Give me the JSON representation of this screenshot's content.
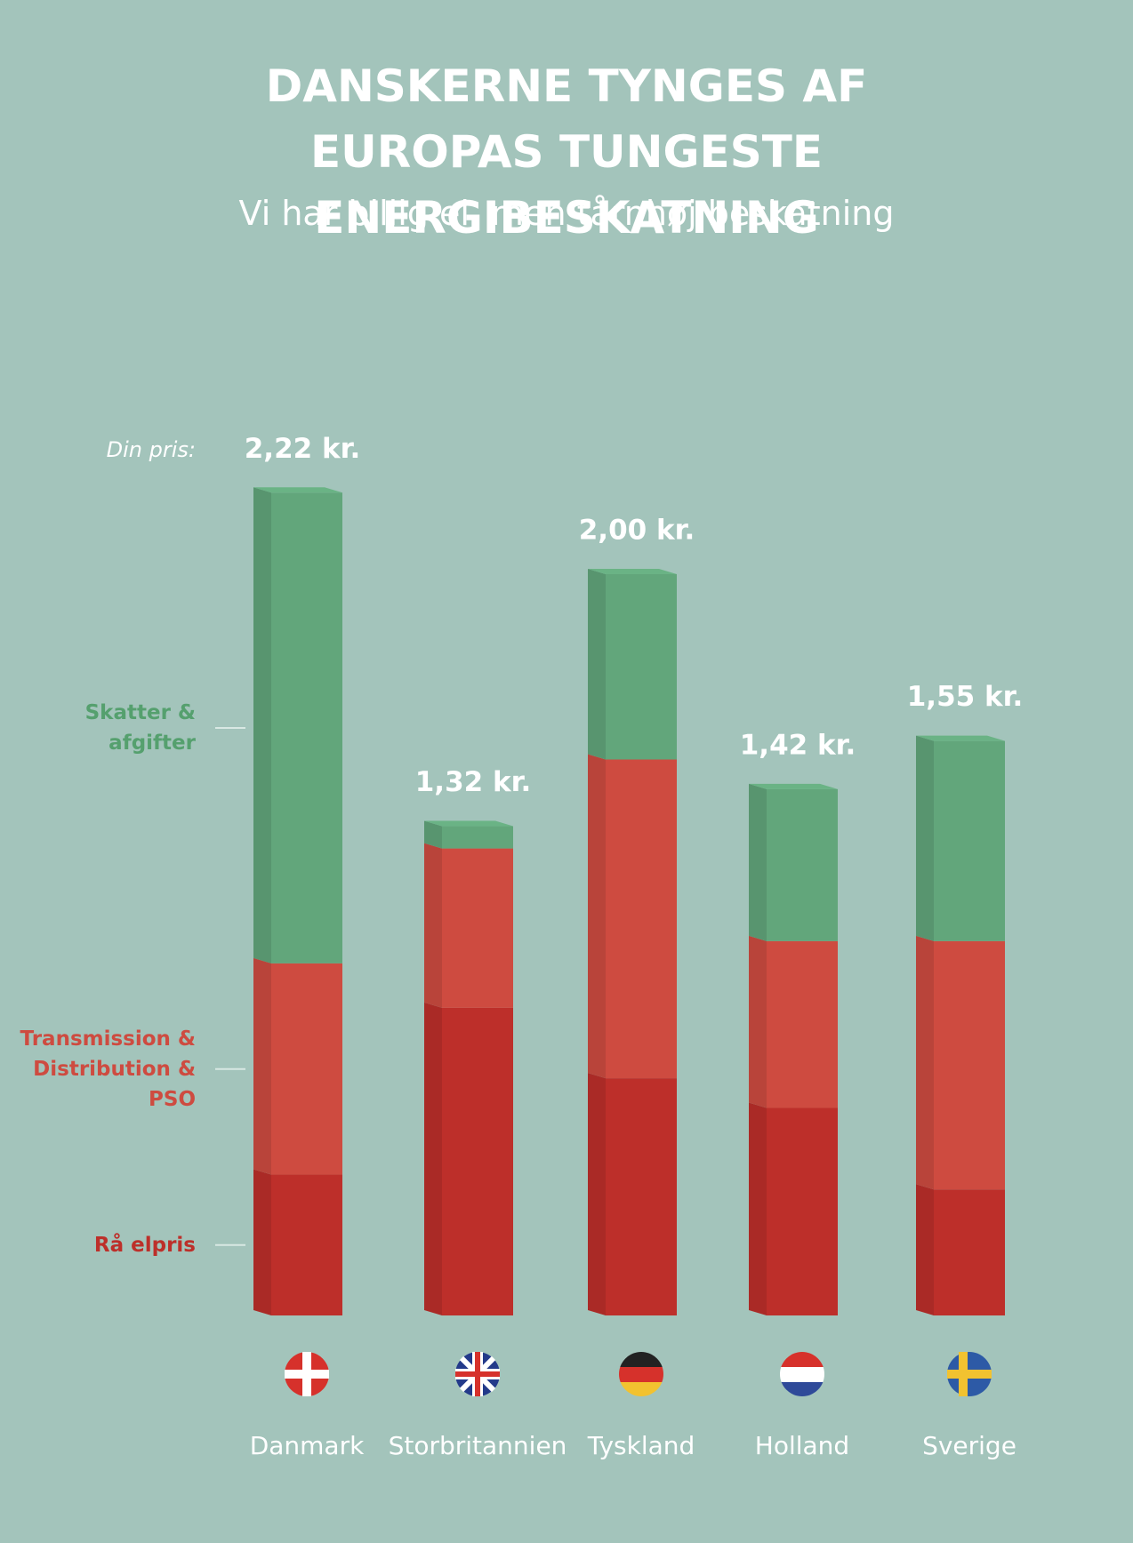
{
  "chart_data": {
    "type": "stacked_bar",
    "title": "DANSKERNE TYNGES AF EUROPAS TUNGESTE ENERGIBESKATNING",
    "subtitle": "Vi har billig el, men tårnhøj beskatning",
    "total_title": "Din pris:",
    "categories": [
      "Danmark",
      "Storbritannien",
      "Tyskland",
      "Holland",
      "Sverige"
    ],
    "series": [
      {
        "name": "Rå elpris",
        "color": "#bd2f2a",
        "values": [
          0.38,
          0.83,
          0.64,
          0.56,
          0.34
        ]
      },
      {
        "name": "Transmission & Distribution & PSO",
        "color": "#ce4b40",
        "values": [
          0.57,
          0.43,
          0.86,
          0.45,
          0.67
        ]
      },
      {
        "name": "Skatter & afgifter",
        "color": "#62a67b",
        "values": [
          1.27,
          0.06,
          0.5,
          0.41,
          0.54
        ]
      }
    ],
    "totals": [
      2.22,
      1.32,
      2.0,
      1.42,
      1.55
    ],
    "total_labels": [
      "2,22 kr.",
      "1,32 kr.",
      "2,00 kr.",
      "1,42 kr.",
      "1,55 kr."
    ]
  }
}
